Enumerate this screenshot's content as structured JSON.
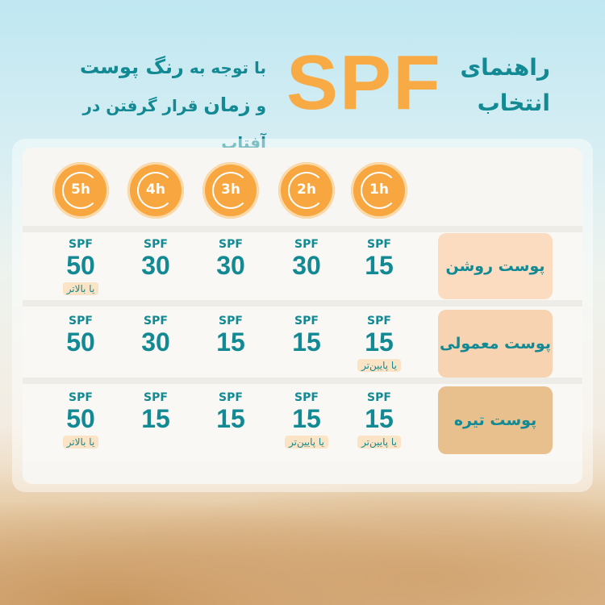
{
  "header": {
    "title_line1": "راهنمای",
    "title_line2": "انتخاب",
    "spf": "SPF",
    "subtitle_line1_a": "با توجه به",
    "subtitle_line1_b": "رنگ پوست",
    "subtitle_line2_a": "و",
    "subtitle_line2_b": "زمان",
    "subtitle_line2_c": "قرار گرفتن در آفتاب"
  },
  "colors": {
    "accent": "#f8aa45",
    "text": "#138a93",
    "light_skin": "#fbdcc0",
    "normal_skin": "#f8d3b2",
    "dark_skin": "#e8c08e"
  },
  "hours": [
    "1h",
    "2h",
    "3h",
    "4h",
    "5h"
  ],
  "hour_icon": "clock-arrow-icon",
  "rows": [
    {
      "label": "پوست روشن",
      "cells": [
        {
          "s": "SPF",
          "v": "15"
        },
        {
          "s": "SPF",
          "v": "30"
        },
        {
          "s": "SPF",
          "v": "30"
        },
        {
          "s": "SPF",
          "v": "30"
        },
        {
          "s": "SPF",
          "v": "50",
          "n": "یا بالاتر"
        }
      ]
    },
    {
      "label": "پوست معمولی",
      "cells": [
        {
          "s": "SPF",
          "v": "15",
          "n": "یا پایین‌تر"
        },
        {
          "s": "SPF",
          "v": "15"
        },
        {
          "s": "SPF",
          "v": "15"
        },
        {
          "s": "SPF",
          "v": "30"
        },
        {
          "s": "SPF",
          "v": "50"
        }
      ]
    },
    {
      "label": "پوست تیره",
      "cells": [
        {
          "s": "SPF",
          "v": "15",
          "n": "یا پایین‌تر"
        },
        {
          "s": "SPF",
          "v": "15",
          "n": "یا پایین‌تر"
        },
        {
          "s": "SPF",
          "v": "15"
        },
        {
          "s": "SPF",
          "v": "15"
        },
        {
          "s": "SPF",
          "v": "50",
          "n": "یا بالاتر"
        }
      ]
    }
  ]
}
